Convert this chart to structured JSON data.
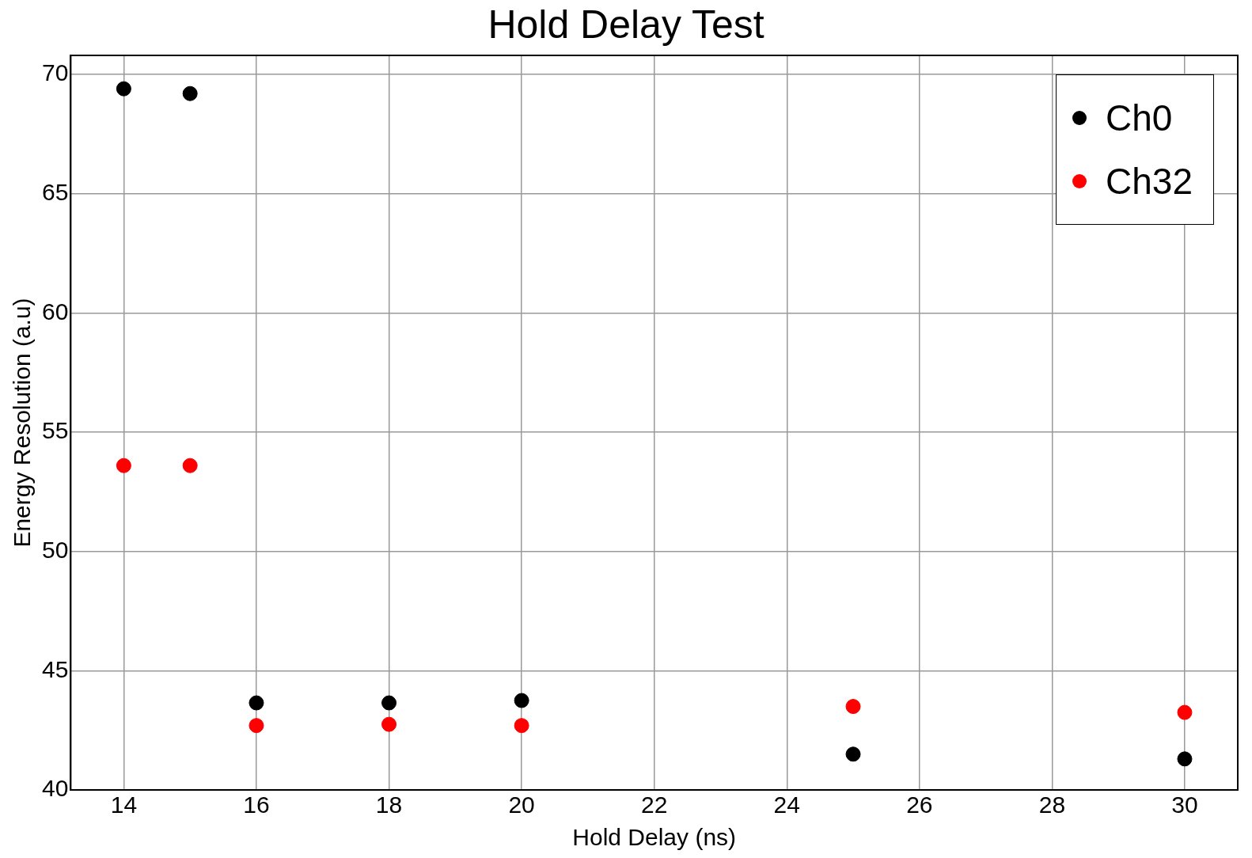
{
  "chart_data": {
    "type": "scatter",
    "title": "Hold Delay Test",
    "xlabel": "Hold Delay (ns)",
    "ylabel": "Energy Resolution (a.u)",
    "series": [
      {
        "name": "Ch0",
        "color": "#000000",
        "x": [
          14,
          15,
          16,
          18,
          20,
          25,
          30
        ],
        "values": [
          69.4,
          69.2,
          43.65,
          43.65,
          43.75,
          41.5,
          41.3
        ]
      },
      {
        "name": "Ch32",
        "color": "#ff0000",
        "x": [
          14,
          15,
          16,
          18,
          20,
          25,
          30
        ],
        "values": [
          53.6,
          53.6,
          42.7,
          42.75,
          42.7,
          43.5,
          43.25
        ]
      }
    ],
    "xlim": [
      13.2,
      30.8
    ],
    "xticks": [
      14,
      16,
      18,
      20,
      22,
      24,
      26,
      28,
      30
    ],
    "ylim": [
      40,
      70.8
    ],
    "yticks": [
      40,
      45,
      50,
      55,
      60,
      65,
      70
    ],
    "grid": true,
    "legend": "top right",
    "marker": "circle"
  }
}
